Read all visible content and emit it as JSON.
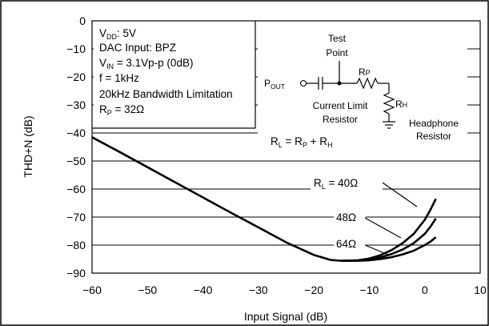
{
  "chart_data": {
    "type": "line",
    "xlabel": "Input Signal (dB)",
    "ylabel": "THD+N (dB)",
    "xlim": [
      -60,
      10
    ],
    "ylim": [
      -90,
      0
    ],
    "xticks": [
      -60,
      -50,
      -40,
      -30,
      -20,
      -10,
      0,
      10
    ],
    "yticks": [
      0,
      -10,
      -20,
      -30,
      -40,
      -50,
      -60,
      -70,
      -80,
      -90
    ],
    "grid": "horizontal",
    "conditions": {
      "vdd_label": "V",
      "vdd_sub": "DD",
      "vdd_value": ": 5V",
      "dac_input": "DAC Input: BPZ",
      "vin_label": "V",
      "vin_sub": "IN",
      "vin_value": " = 3.1Vp-p (0dB)",
      "freq": "f = 1kHz",
      "bandwidth": "20kHz Bandwidth Limitation",
      "rp_label": "R",
      "rp_sub": "P",
      "rp_value": " = 32Ω"
    },
    "circuit": {
      "test_point_line1": "Test",
      "test_point_line2": "Point",
      "pout_label": "P",
      "pout_sub": "OUT",
      "rp_label": "R",
      "rp_sub": "P",
      "rh_label": "R",
      "rh_sub": "H",
      "current_limit_line1": "Current Limit",
      "current_limit_line2": "Resistor",
      "headphone_line1": "Headphone",
      "headphone_line2": "Resistor",
      "formula_rl": "R",
      "formula_rl_sub": "L",
      "formula_eq": " = R",
      "formula_rp_sub": "P",
      "formula_plus": " + R",
      "formula_rh_sub": "H"
    },
    "series_labels": {
      "s40_prefix": "R",
      "s40_sub": "L",
      "s40_value": " = 40Ω",
      "s48": "48Ω",
      "s64": "64Ω"
    },
    "common_curve": {
      "x": [
        -60,
        -55,
        -50,
        -45,
        -40,
        -35,
        -30,
        -25,
        -20,
        -17,
        -15
      ],
      "y": [
        -41.5,
        -46.8,
        -52.2,
        -57.6,
        -63.0,
        -68.4,
        -73.7,
        -79.0,
        -83.5,
        -85.3,
        -85.6
      ]
    },
    "series": [
      {
        "name": "R_L = 40Ω",
        "x": [
          -15,
          -12,
          -10,
          -8,
          -6,
          -4,
          -2,
          0,
          1,
          2
        ],
        "y": [
          -85.6,
          -85.4,
          -84.8,
          -83.6,
          -81.8,
          -79.3,
          -76.0,
          -71.0,
          -67.5,
          -63.5
        ]
      },
      {
        "name": "48Ω",
        "x": [
          -15,
          -12,
          -10,
          -8,
          -6,
          -4,
          -2,
          0,
          1,
          2
        ],
        "y": [
          -85.6,
          -85.5,
          -85.1,
          -84.4,
          -83.2,
          -81.6,
          -79.3,
          -76.0,
          -73.5,
          -70.5
        ]
      },
      {
        "name": "64Ω",
        "x": [
          -15,
          -12,
          -10,
          -8,
          -6,
          -4,
          -2,
          0,
          1,
          2
        ],
        "y": [
          -85.6,
          -85.6,
          -85.4,
          -85.0,
          -84.3,
          -83.3,
          -82.0,
          -80.0,
          -78.8,
          -77.2
        ]
      }
    ]
  }
}
